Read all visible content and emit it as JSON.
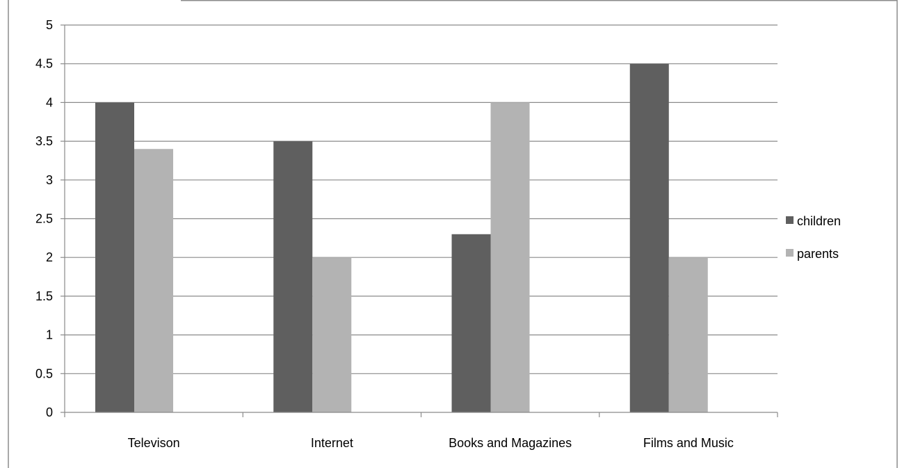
{
  "chart_data": {
    "type": "bar",
    "title": "",
    "xlabel": "",
    "ylabel": "",
    "categories": [
      "Televison",
      "Internet",
      "Books and Magazines",
      "Films and Music"
    ],
    "series": [
      {
        "name": "children",
        "values": [
          4,
          3.5,
          2.3,
          4.5
        ],
        "color": "#5f5f5f"
      },
      {
        "name": "parents",
        "values": [
          3.4,
          2,
          4,
          2
        ],
        "color": "#b3b3b3"
      }
    ],
    "ylim": [
      0,
      5
    ],
    "yticks": [
      "0",
      "0.5",
      "1",
      "1.5",
      "2",
      "2.5",
      "3",
      "3.5",
      "4",
      "4.5",
      "5"
    ],
    "grid": true,
    "legend_position": "right"
  }
}
